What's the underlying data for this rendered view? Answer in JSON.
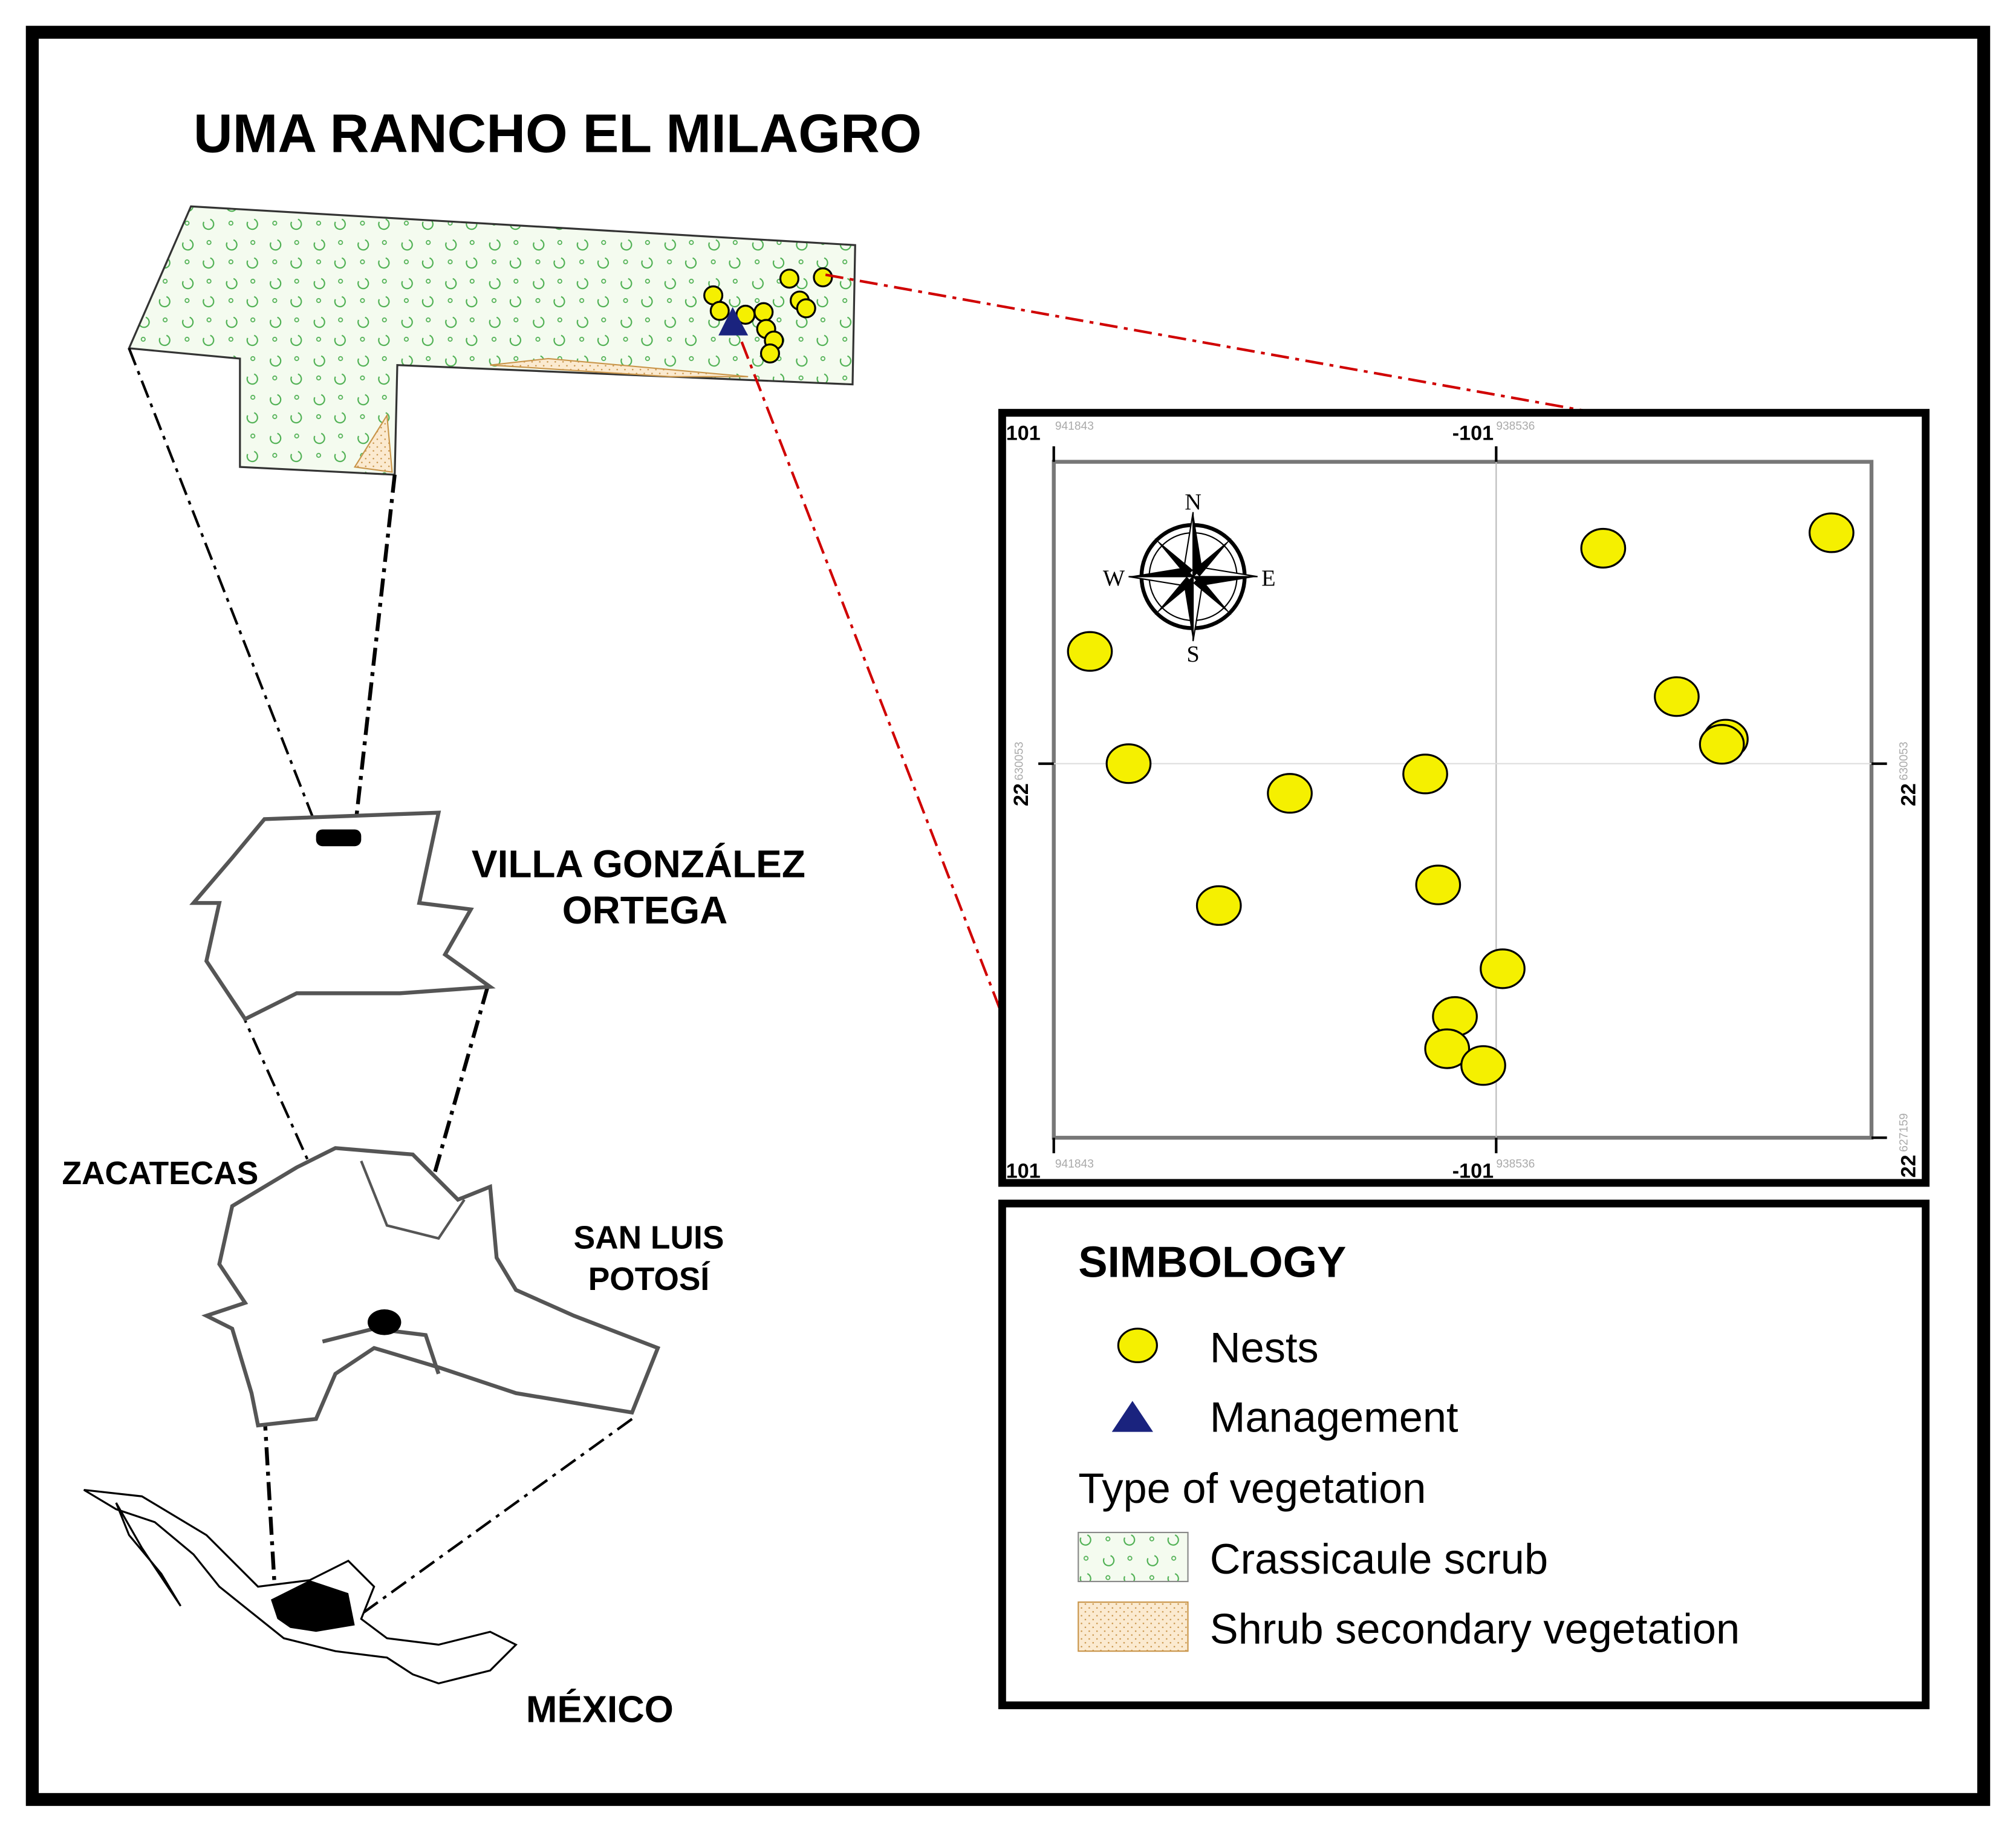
{
  "title": "UMA RANCHO EL MILAGRO",
  "labels": {
    "municipality_line1": "VILLA GONZÁLEZ",
    "municipality_line2": "ORTEGA",
    "state_zacatecas": "ZACATECAS",
    "state_slp_line1": "SAN LUIS",
    "state_slp_line2": "POTOSÍ",
    "country": "MÉXICO"
  },
  "inset": {
    "top_left_lon": {
      "deg": "101",
      "dec": "941843"
    },
    "top_mid_lon": {
      "deg": "-101",
      "dec": "938536"
    },
    "bottom_left_lon": {
      "deg": "101",
      "dec": "941843"
    },
    "bottom_mid_lon": {
      "deg": "-101",
      "dec": "938536"
    },
    "left_lat": {
      "deg": "22",
      "dec": "630053"
    },
    "right_lat": {
      "deg": "22",
      "dec": "630053"
    },
    "right_bottom_lat": {
      "deg": "22",
      "dec": "627159"
    },
    "compass": {
      "n": "N",
      "s": "S",
      "e": "E",
      "w": "W"
    }
  },
  "legend": {
    "title": "SIMBOLOGY",
    "nests": "Nests",
    "management": "Management",
    "vegetation_heading": "Type of vegetation",
    "crassicaule": "Crassicaule scrub",
    "shrub": "Shrub secondary vegetation"
  },
  "colors": {
    "nest": "#f5f000",
    "management": "#1a237e",
    "scrub_symbol": "#4caf50",
    "shrub_fill": "#e8c38a",
    "leader_line": "#d00000",
    "frame": "#000000"
  }
}
